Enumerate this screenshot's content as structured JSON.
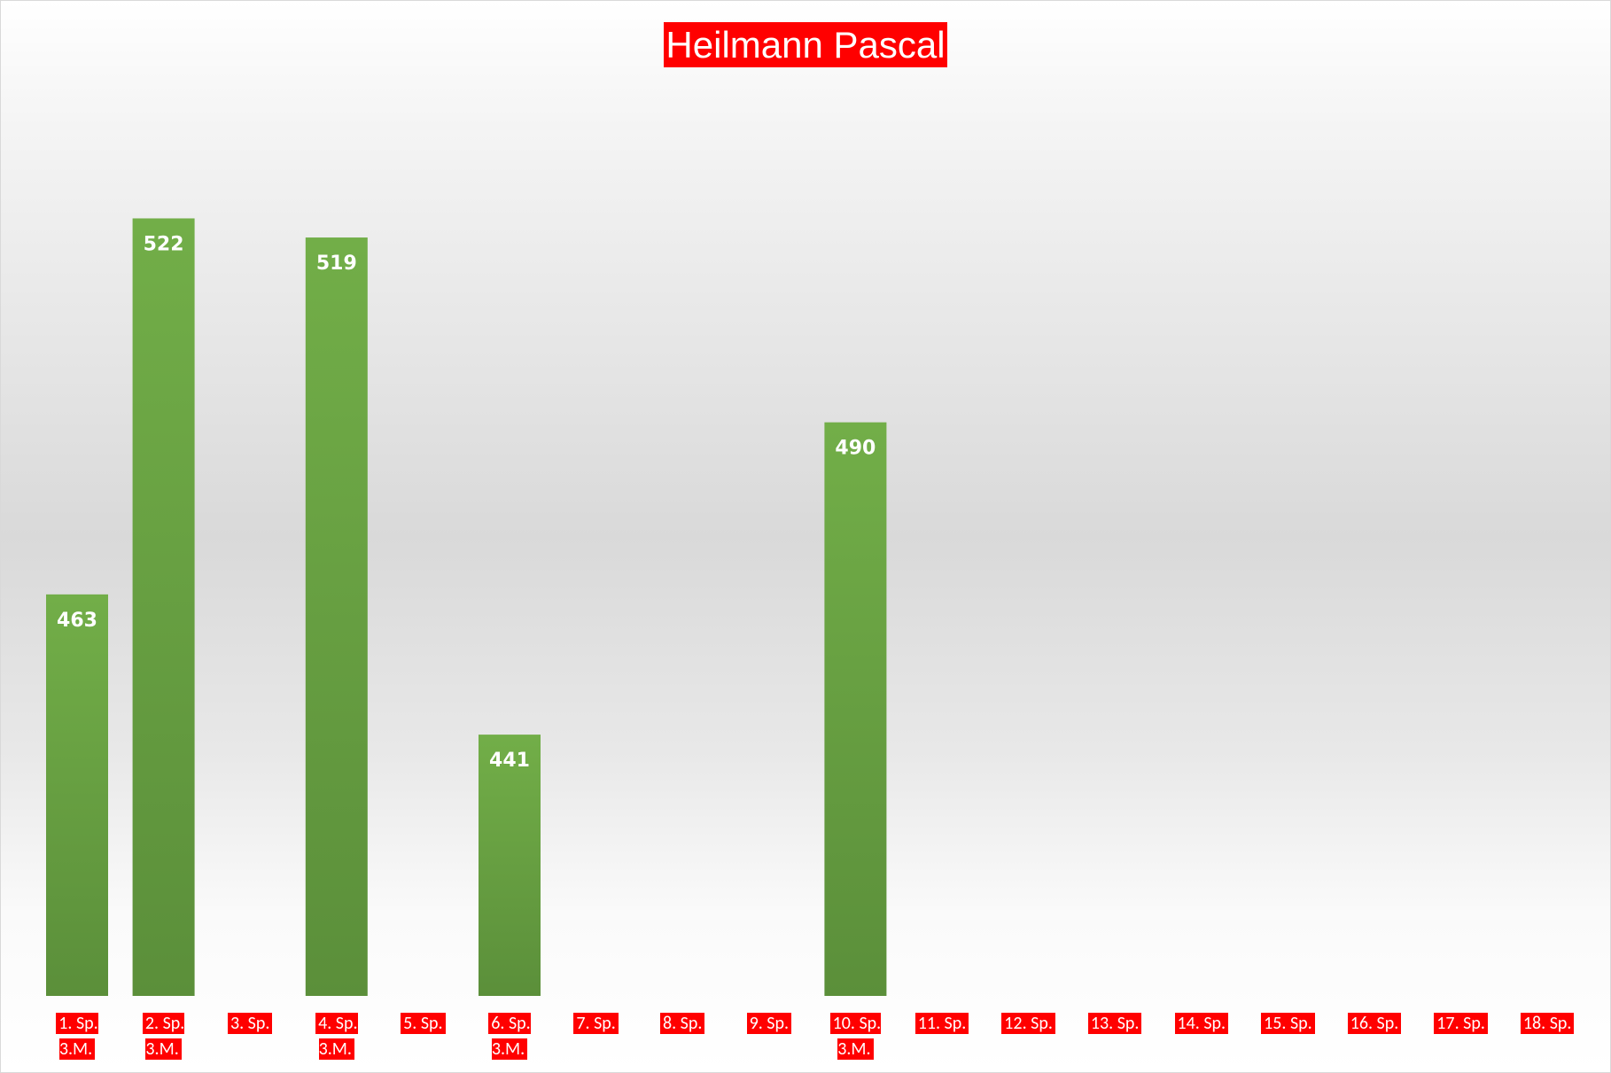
{
  "chart_data": {
    "type": "bar",
    "title": "Heilmann Pascal",
    "categories": [
      "1. Sp.\n3.M.",
      "2. Sp.\n3.M.",
      "3. Sp.",
      "4. Sp.\n3.M.",
      "5. Sp.",
      "6. Sp.\n3.M.",
      "7. Sp.",
      "8. Sp.",
      "9. Sp.",
      "10. Sp.\n3.M.",
      "11. Sp.",
      "12. Sp.",
      "13. Sp.",
      "14. Sp.",
      "15. Sp.",
      "16. Sp.",
      "17. Sp.",
      "18. Sp."
    ],
    "values": [
      463,
      522,
      null,
      519,
      null,
      441,
      null,
      null,
      null,
      490,
      null,
      null,
      null,
      null,
      null,
      null,
      null,
      null
    ],
    "color": "#70ad47",
    "ylim": [
      400,
      540
    ]
  }
}
